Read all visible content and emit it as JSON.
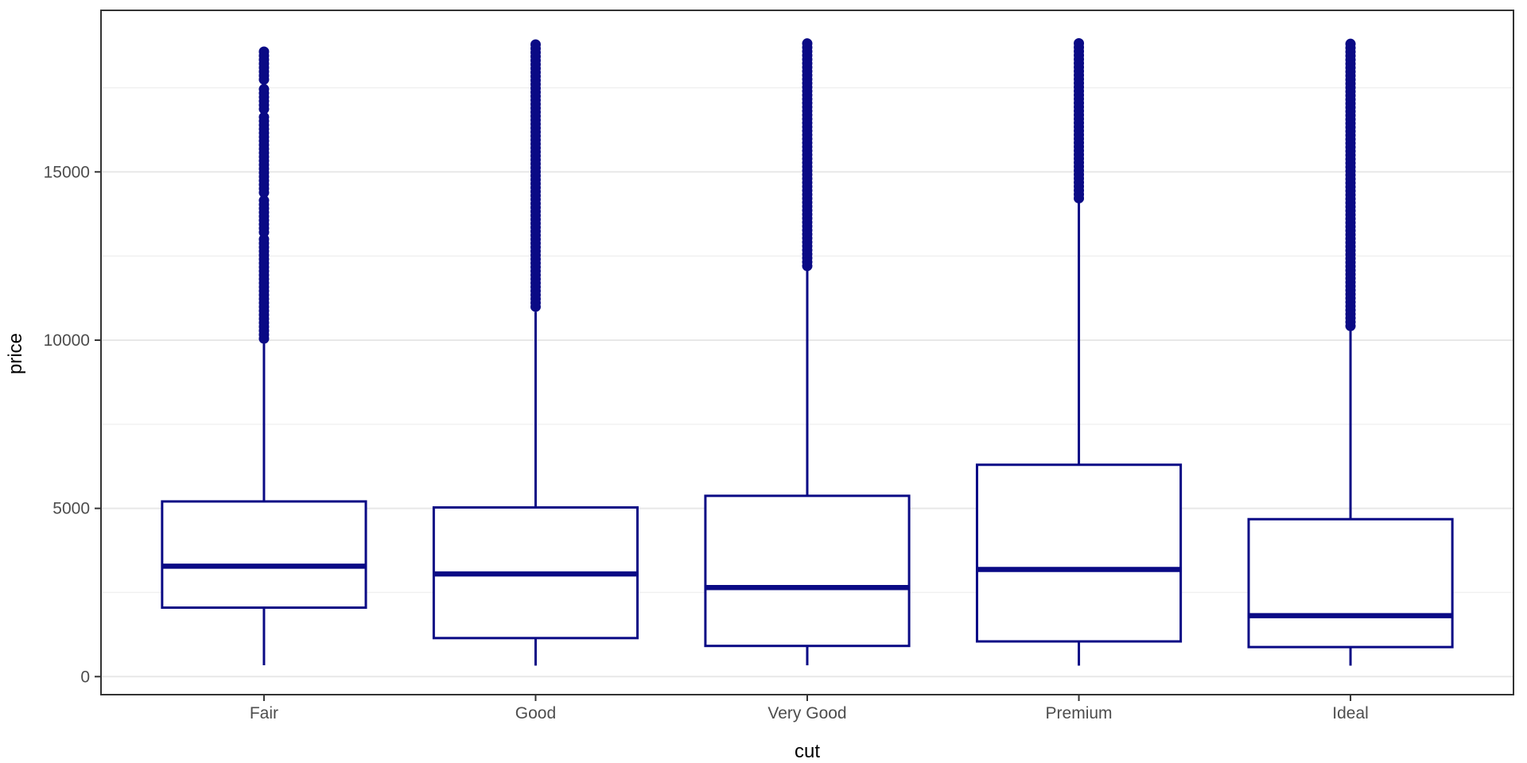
{
  "chart_data": {
    "type": "boxplot",
    "title": "",
    "xlabel": "cut",
    "ylabel": "price",
    "legend": "none",
    "grid": "on",
    "categories": [
      "Fair",
      "Good",
      "Very Good",
      "Premium",
      "Ideal"
    ],
    "y_axis": {
      "major_ticks": [
        0,
        5000,
        10000,
        15000
      ],
      "major_tick_labels": [
        "0",
        "5000",
        "10000",
        "15000"
      ],
      "minor_gridlines": [
        2500,
        7500,
        12500,
        17500
      ],
      "ylim": [
        -600,
        19800
      ]
    },
    "groups": [
      {
        "category": "Fair",
        "whisker_low": 337,
        "q1": 2050,
        "median": 3282,
        "q3": 5206,
        "whisker_high": 9899,
        "outlier_segments": [
          [
            9948,
            13000
          ],
          [
            13120,
            14150
          ],
          [
            14300,
            16630
          ],
          [
            16845,
            17460
          ],
          [
            17670,
            18574
          ]
        ]
      },
      {
        "category": "Good",
        "whisker_low": 327,
        "q1": 1145,
        "median": 3050,
        "q3": 5028,
        "whisker_high": 10841,
        "outlier_segments": [
          [
            10880,
            18788
          ]
        ]
      },
      {
        "category": "Very Good",
        "whisker_low": 336,
        "q1": 912,
        "median": 2648,
        "q3": 5373,
        "whisker_high": 12056,
        "outlier_segments": [
          [
            12100,
            18818
          ]
        ]
      },
      {
        "category": "Premium",
        "whisker_low": 326,
        "q1": 1046,
        "median": 3185,
        "q3": 6296,
        "whisker_high": 14160,
        "outlier_segments": [
          [
            14200,
            18823
          ]
        ]
      },
      {
        "category": "Ideal",
        "whisker_low": 326,
        "q1": 878,
        "median": 1810,
        "q3": 4679,
        "whisker_high": 10377,
        "outlier_segments": [
          [
            10420,
            18806
          ]
        ]
      }
    ],
    "colors": {
      "box_stroke": "#0a0a85",
      "box_fill": "#ffffff",
      "outlier_dot": "#0a0a85",
      "panel_border": "#333333",
      "grid_major": "#e8e8e8",
      "grid_minor": "#f0f0f0",
      "tick_mark": "#333333",
      "tick_label": "#4d4d4d",
      "axis_title": "#000000",
      "background": "#ffffff"
    }
  }
}
